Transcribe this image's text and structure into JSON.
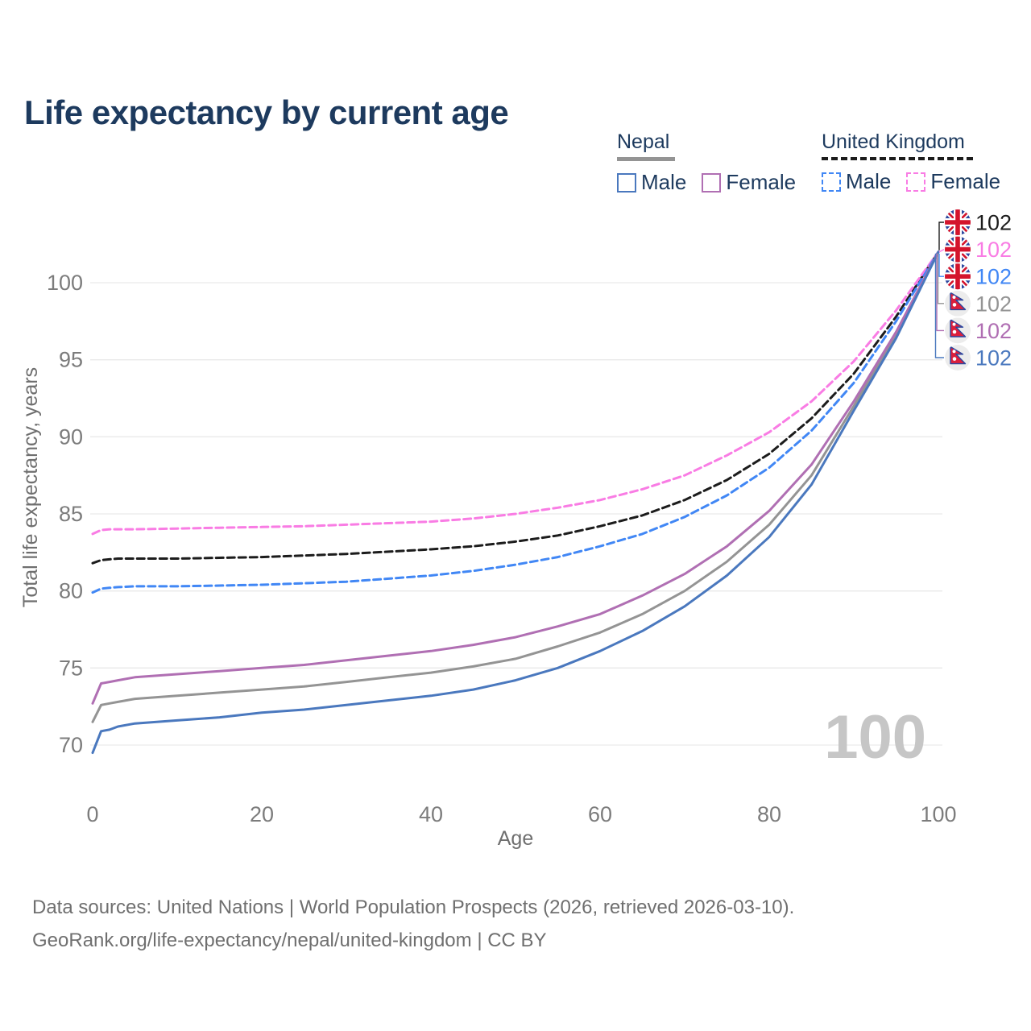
{
  "title": "Life expectancy by current age",
  "watermark": "100",
  "legend": {
    "groups": [
      {
        "name": "Nepal",
        "underline_series": 3,
        "items": [
          {
            "label": "Male",
            "series": 5
          },
          {
            "label": "Female",
            "series": 4
          }
        ]
      },
      {
        "name": "United Kingdom",
        "underline_series": 0,
        "items": [
          {
            "label": "Male",
            "series": 2
          },
          {
            "label": "Female",
            "series": 1
          }
        ]
      }
    ]
  },
  "footer": {
    "line1": "Data sources: United Nations | World Population Prospects (2026, retrieved 2026-03-10).",
    "line2": "GeoRank.org/life-expectancy/nepal/united-kingdom | CC BY"
  },
  "chart_data": {
    "type": "line",
    "title": "Life expectancy by current age",
    "xlabel": "Age",
    "ylabel": "Total life expectancy, years",
    "xlim": [
      0,
      100
    ],
    "ylim": [
      69,
      103
    ],
    "x_ticks": [
      0,
      20,
      40,
      60,
      80,
      100
    ],
    "y_ticks": [
      70,
      75,
      80,
      85,
      90,
      95,
      100
    ],
    "grid": "horizontal",
    "legend_position": "top-right",
    "x": [
      0,
      1,
      2,
      3,
      5,
      10,
      15,
      20,
      25,
      30,
      35,
      40,
      45,
      50,
      55,
      60,
      65,
      70,
      75,
      80,
      85,
      90,
      95,
      100
    ],
    "series": [
      {
        "name": "United Kingdom Total",
        "country": "United Kingdom",
        "sex": "Total",
        "color": "#1c1c1c",
        "dash": true,
        "flag": "uk",
        "end_label": "102",
        "values": [
          81.8,
          82.0,
          82.05,
          82.1,
          82.1,
          82.1,
          82.15,
          82.2,
          82.3,
          82.4,
          82.55,
          82.7,
          82.9,
          83.2,
          83.6,
          84.2,
          84.9,
          85.9,
          87.2,
          88.9,
          91.2,
          94.1,
          97.8,
          102
        ]
      },
      {
        "name": "United Kingdom Female",
        "country": "United Kingdom",
        "sex": "Female",
        "color": "#f97ce4",
        "dash": true,
        "flag": "uk",
        "end_label": "102",
        "values": [
          83.7,
          83.95,
          84.0,
          84.0,
          84.0,
          84.05,
          84.1,
          84.15,
          84.2,
          84.3,
          84.4,
          84.5,
          84.7,
          85.0,
          85.4,
          85.9,
          86.6,
          87.5,
          88.8,
          90.3,
          92.3,
          94.9,
          98.2,
          102
        ]
      },
      {
        "name": "United Kingdom Male",
        "country": "United Kingdom",
        "sex": "Male",
        "color": "#4187f5",
        "dash": true,
        "flag": "uk",
        "end_label": "102",
        "values": [
          79.9,
          80.15,
          80.2,
          80.25,
          80.3,
          80.3,
          80.35,
          80.4,
          80.5,
          80.6,
          80.8,
          81.0,
          81.3,
          81.7,
          82.2,
          82.9,
          83.7,
          84.8,
          86.2,
          88.0,
          90.4,
          93.5,
          97.5,
          102
        ]
      },
      {
        "name": "Nepal Total",
        "country": "Nepal",
        "sex": "Total",
        "color": "#949494",
        "dash": false,
        "flag": "np",
        "end_label": "102",
        "values": [
          71.5,
          72.6,
          72.7,
          72.8,
          73.0,
          73.2,
          73.4,
          73.6,
          73.8,
          74.1,
          74.4,
          74.7,
          75.1,
          75.6,
          76.4,
          77.3,
          78.5,
          80.0,
          81.9,
          84.3,
          87.5,
          92.0,
          96.6,
          102
        ]
      },
      {
        "name": "Nepal Female",
        "country": "Nepal",
        "sex": "Female",
        "color": "#b06fb3",
        "dash": false,
        "flag": "np",
        "end_label": "102",
        "values": [
          72.7,
          74.0,
          74.1,
          74.2,
          74.4,
          74.6,
          74.8,
          75.0,
          75.2,
          75.5,
          75.8,
          76.1,
          76.5,
          77.0,
          77.7,
          78.5,
          79.7,
          81.1,
          82.9,
          85.2,
          88.2,
          92.3,
          96.8,
          102
        ]
      },
      {
        "name": "Nepal Male",
        "country": "Nepal",
        "sex": "Male",
        "color": "#4a78be",
        "dash": false,
        "flag": "np",
        "end_label": "102",
        "values": [
          69.5,
          70.9,
          71.0,
          71.2,
          71.4,
          71.6,
          71.8,
          72.1,
          72.3,
          72.6,
          72.9,
          73.2,
          73.6,
          74.2,
          75.0,
          76.1,
          77.4,
          79.0,
          81.0,
          83.5,
          86.9,
          91.7,
          96.4,
          102
        ]
      }
    ]
  }
}
